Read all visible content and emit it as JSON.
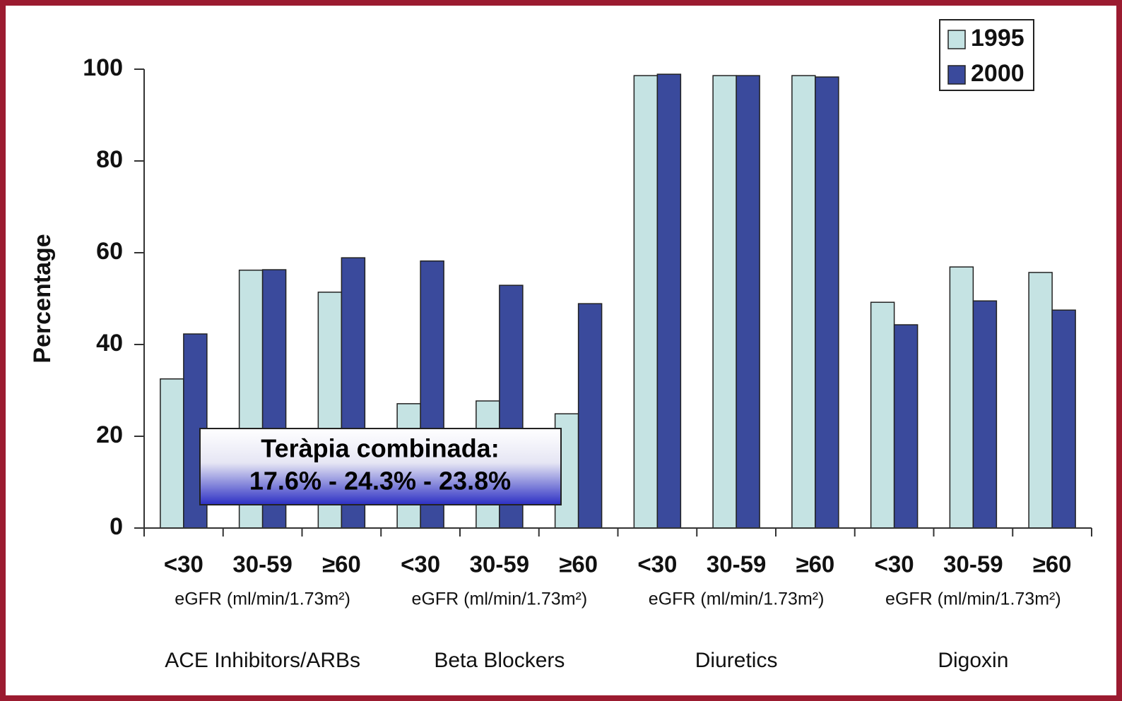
{
  "chart_data": {
    "type": "bar",
    "ylabel": "Percentage",
    "xlabel": "eGFR (ml/min/1.73m²)",
    "categories": [
      "<30",
      "30-59",
      "≥60",
      "<30",
      "30-59",
      "≥60",
      "<30",
      "30-59",
      "≥60",
      "<30",
      "30-59",
      "≥60"
    ],
    "groups": [
      "ACE Inhibitors/ARBs",
      "Beta Blockers",
      "Diuretics",
      "Digoxin"
    ],
    "series": [
      {
        "name": "1995",
        "color": "#c5e3e3",
        "values": [
          32.5,
          56.2,
          51.4,
          27.1,
          27.7,
          24.9,
          98.6,
          98.6,
          98.6,
          49.2,
          56.9,
          55.7
        ]
      },
      {
        "name": "2000",
        "color": "#3a4a9c",
        "values": [
          42.3,
          56.3,
          58.9,
          58.2,
          52.9,
          48.9,
          98.9,
          98.6,
          98.3,
          44.3,
          49.5,
          47.5
        ]
      }
    ],
    "ylim": [
      0,
      100
    ],
    "yticks": [
      0,
      20,
      40,
      60,
      80,
      100
    ],
    "legend": "top-right",
    "annotation": [
      "Teràpia combinada:",
      "17.6% - 24.3% - 23.8%"
    ]
  }
}
